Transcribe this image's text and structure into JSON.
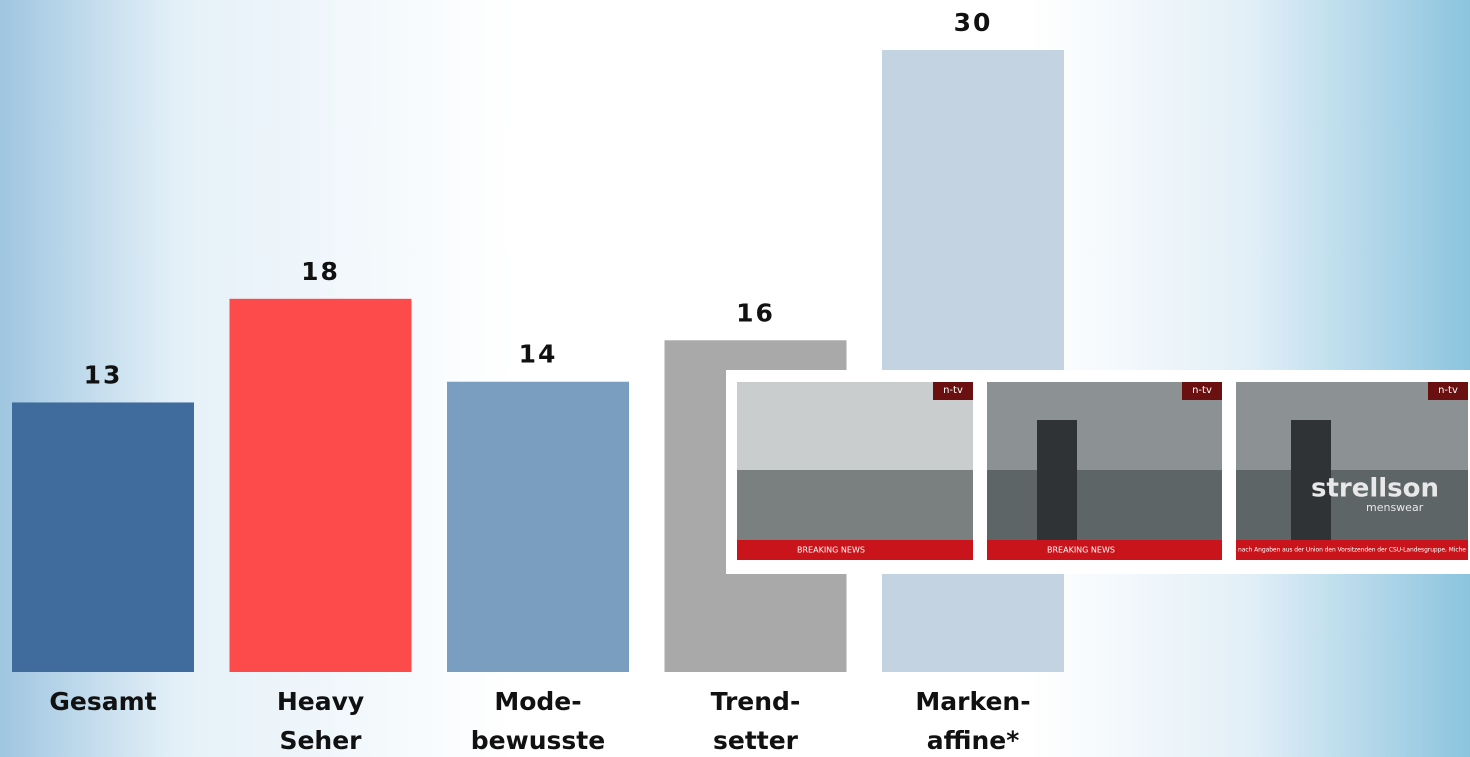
{
  "chart_data": {
    "type": "bar",
    "categories": [
      [
        "Gesamt"
      ],
      [
        "Heavy",
        "Seher"
      ],
      [
        "Mode-",
        "bewusste"
      ],
      [
        "Trend-",
        "setter"
      ],
      [
        "Marken-",
        "affine*"
      ]
    ],
    "values": [
      13,
      18,
      14,
      16,
      30
    ],
    "colors": [
      "#3f6b9d",
      "#fd4b4b",
      "#799ebf",
      "#a9a9a9",
      "#c3d3e2"
    ],
    "ylim": [
      0,
      30
    ]
  },
  "overlay": {
    "frames": [
      {
        "logo": "n-tv",
        "ticker": "BREAKING NEWS"
      },
      {
        "logo": "n-tv",
        "ticker": "BREAKING NEWS"
      },
      {
        "logo": "n-tv",
        "ticker": "nach Angaben aus der Union den Vorsitzenden der CSU-Landesgruppe, Miche",
        "brand": "strellson",
        "sub": "menswear"
      }
    ]
  }
}
